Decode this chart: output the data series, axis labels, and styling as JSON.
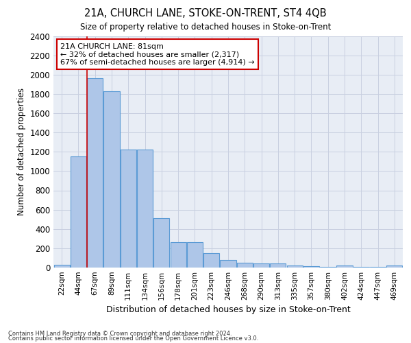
{
  "title": "21A, CHURCH LANE, STOKE-ON-TRENT, ST4 4QB",
  "subtitle": "Size of property relative to detached houses in Stoke-on-Trent",
  "xlabel": "Distribution of detached houses by size in Stoke-on-Trent",
  "ylabel": "Number of detached properties",
  "categories": [
    "22sqm",
    "44sqm",
    "67sqm",
    "89sqm",
    "111sqm",
    "134sqm",
    "156sqm",
    "178sqm",
    "201sqm",
    "223sqm",
    "246sqm",
    "268sqm",
    "290sqm",
    "313sqm",
    "335sqm",
    "357sqm",
    "380sqm",
    "402sqm",
    "424sqm",
    "447sqm",
    "469sqm"
  ],
  "values": [
    25,
    1150,
    1960,
    1830,
    1220,
    1220,
    510,
    265,
    265,
    150,
    80,
    48,
    40,
    40,
    20,
    15,
    10,
    20,
    10,
    10,
    20
  ],
  "bar_color": "#aec6e8",
  "bar_edge_color": "#5b9bd5",
  "vline_x": 1.5,
  "vline_color": "#cc0000",
  "annotation_text": "21A CHURCH LANE: 81sqm\n← 32% of detached houses are smaller (2,317)\n67% of semi-detached houses are larger (4,914) →",
  "annotation_box_color": "#ffffff",
  "annotation_box_edge_color": "#cc0000",
  "ylim": [
    0,
    2400
  ],
  "yticks": [
    0,
    200,
    400,
    600,
    800,
    1000,
    1200,
    1400,
    1600,
    1800,
    2000,
    2200,
    2400
  ],
  "grid_color": "#c8cfe0",
  "bg_color": "#e8edf5",
  "footnote1": "Contains HM Land Registry data © Crown copyright and database right 2024.",
  "footnote2": "Contains public sector information licensed under the Open Government Licence v3.0."
}
